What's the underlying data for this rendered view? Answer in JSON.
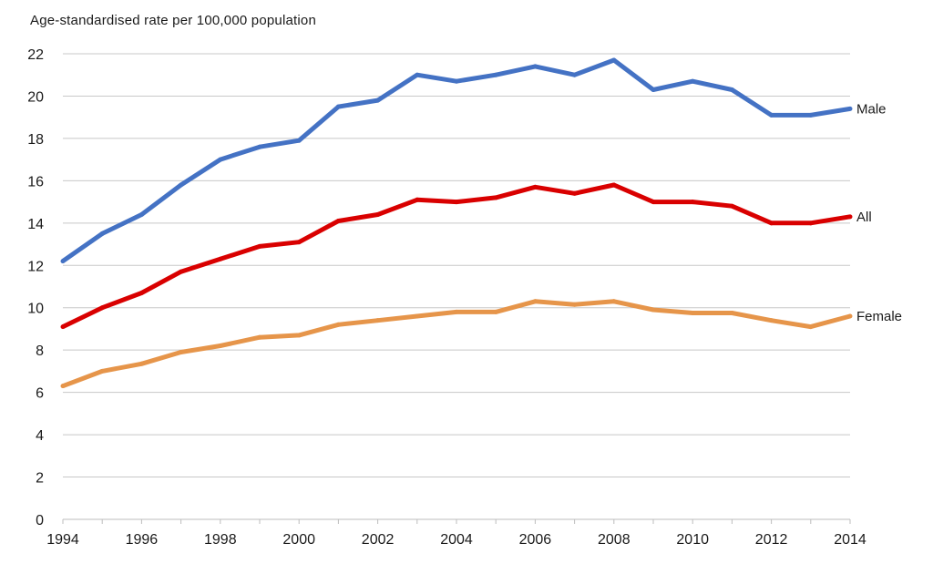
{
  "chart_data": {
    "type": "line",
    "title": "Age-standardised rate per 100,000 population",
    "xlabel": "",
    "ylabel": "Age-standardised rate per 100,000 population",
    "x": [
      1994,
      1995,
      1996,
      1997,
      1998,
      1999,
      2000,
      2001,
      2002,
      2003,
      2004,
      2005,
      2006,
      2007,
      2008,
      2009,
      2010,
      2011,
      2012,
      2013,
      2014
    ],
    "xlim": [
      1994,
      2014
    ],
    "ylim": [
      0,
      22
    ],
    "yticks": [
      0,
      2,
      4,
      6,
      8,
      10,
      12,
      14,
      16,
      18,
      20,
      22
    ],
    "xtick_labels": [
      "1994",
      "1996",
      "1998",
      "2000",
      "2002",
      "2004",
      "2006",
      "2008",
      "2010",
      "2012",
      "2014"
    ],
    "grid": true,
    "legend": "inline-right",
    "series": [
      {
        "name": "Male",
        "color": "#4472C4",
        "values": [
          12.2,
          13.5,
          14.4,
          15.8,
          17.0,
          17.6,
          17.9,
          19.5,
          19.8,
          21.0,
          20.7,
          21.0,
          21.4,
          21.0,
          21.7,
          20.3,
          20.7,
          20.3,
          19.1,
          19.1,
          19.4
        ]
      },
      {
        "name": "All",
        "color": "#D90000",
        "values": [
          9.1,
          10.0,
          10.7,
          11.7,
          12.3,
          12.9,
          13.1,
          14.1,
          14.4,
          15.1,
          15.0,
          15.2,
          15.7,
          15.4,
          15.8,
          15.0,
          15.0,
          14.8,
          14.0,
          14.0,
          14.3
        ]
      },
      {
        "name": "Female",
        "color": "#E6954A",
        "values": [
          6.3,
          7.0,
          7.35,
          7.9,
          8.2,
          8.6,
          8.7,
          9.2,
          9.4,
          9.6,
          9.8,
          9.8,
          10.3,
          10.15,
          10.3,
          9.9,
          9.75,
          9.75,
          9.4,
          9.1,
          9.6
        ]
      }
    ]
  }
}
